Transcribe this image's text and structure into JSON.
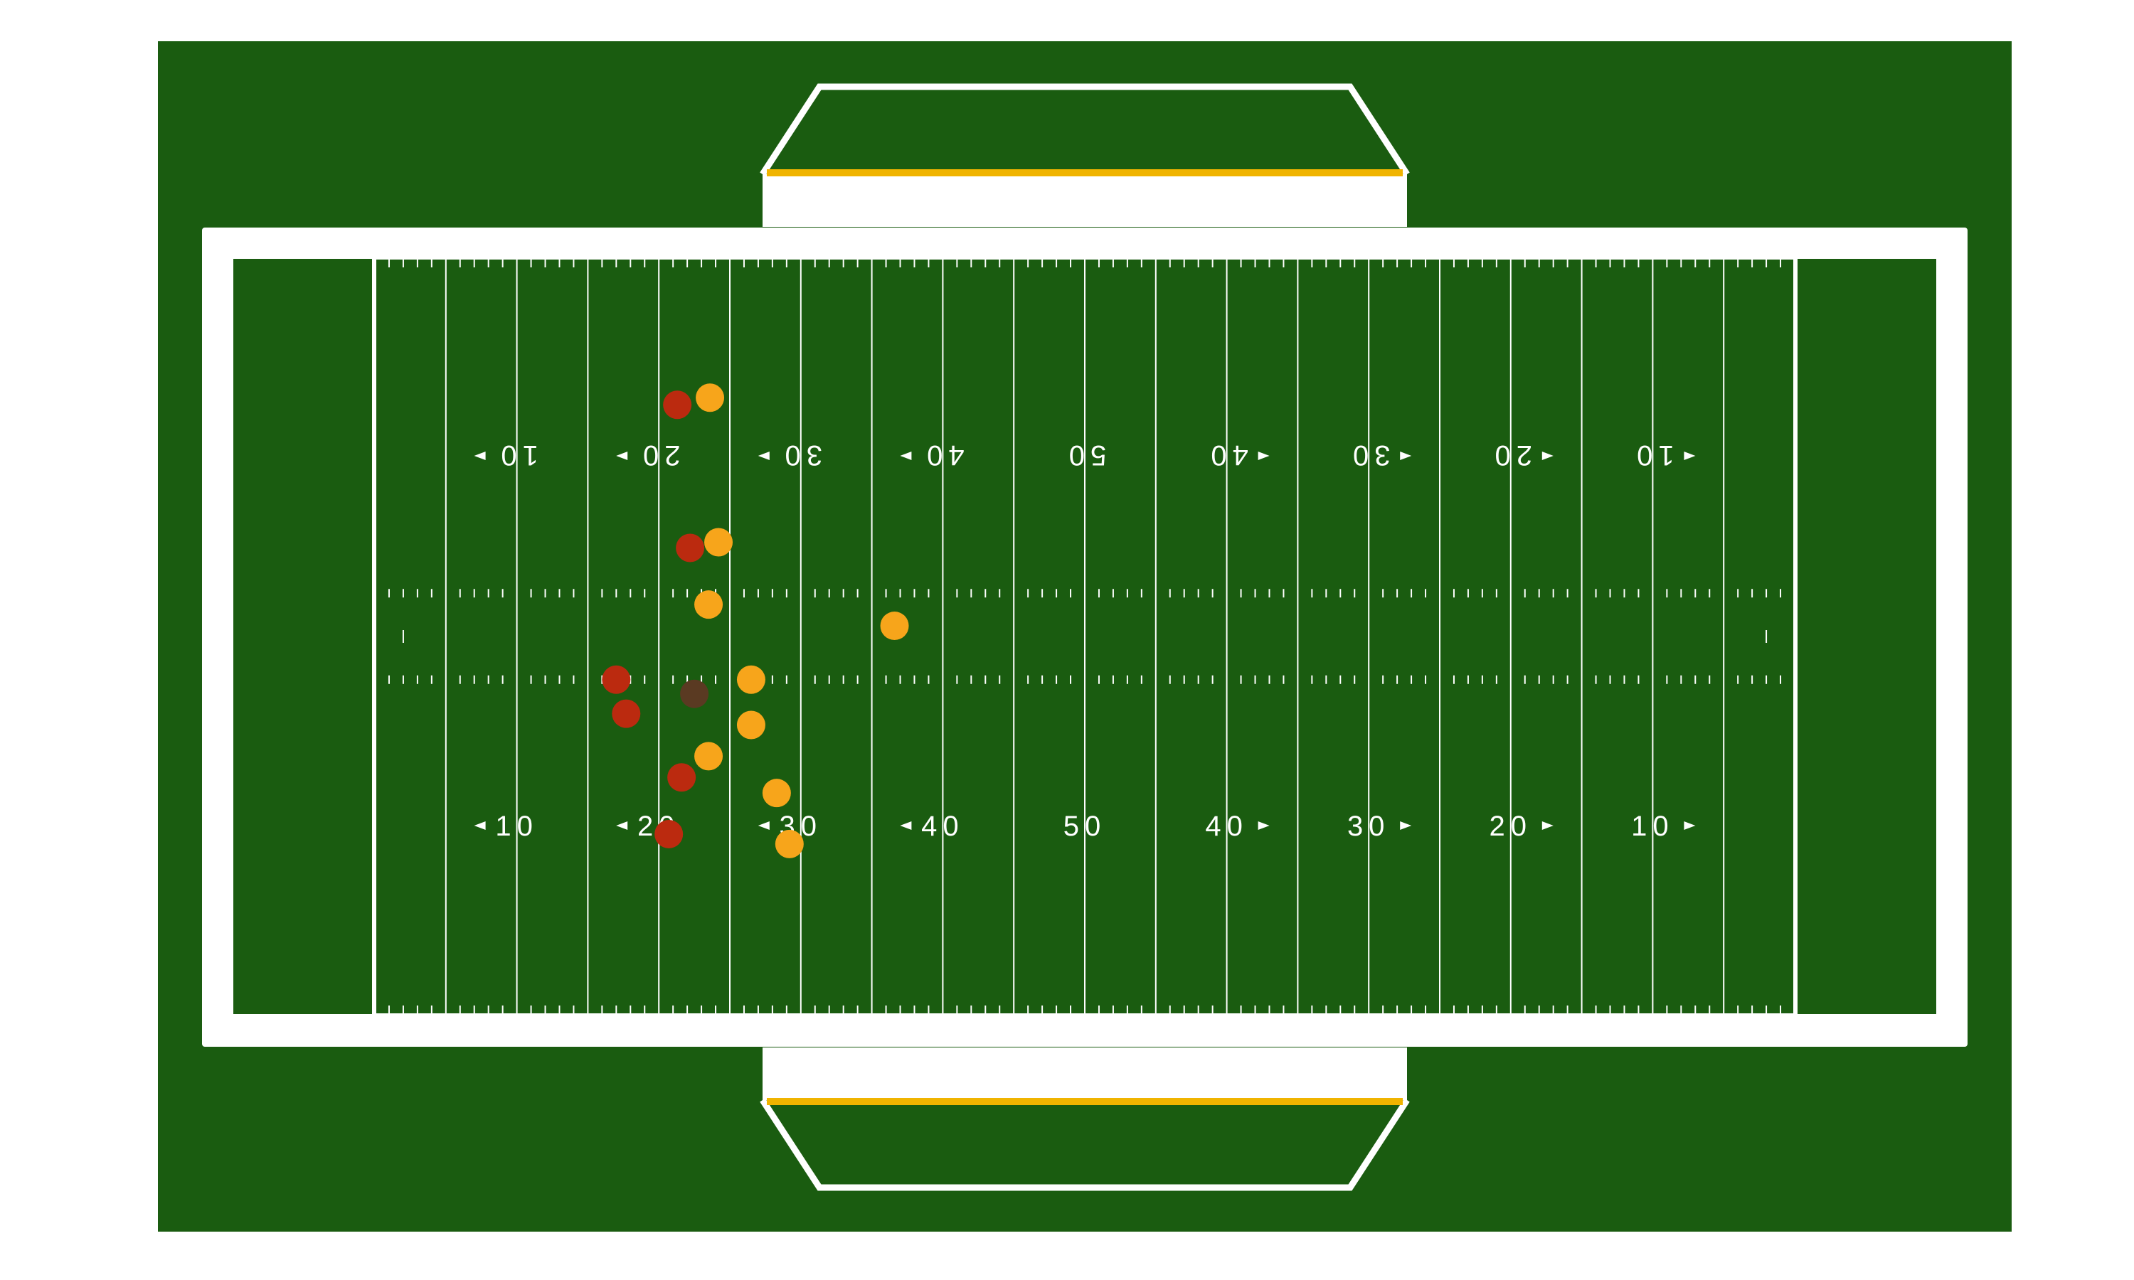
{
  "colors": {
    "background": "#ffffff",
    "grass": "#1a5c10",
    "line": "#ffffff",
    "accent_stripe": "#f0b400",
    "team_red": "#bb2a0f",
    "team_gold": "#f7a51b",
    "ball": "#5a3a22"
  },
  "yard_numbers": {
    "top": [
      "10",
      "20",
      "30",
      "40",
      "50",
      "40",
      "30",
      "20",
      "10"
    ],
    "bottom": [
      "10",
      "20",
      "30",
      "40",
      "50",
      "40",
      "30",
      "20",
      "10"
    ]
  },
  "field": {
    "length_yards": 100,
    "width_yards": 53.3
  },
  "players": [
    {
      "team": "red",
      "yard": 21.3,
      "lateral": 43.0
    },
    {
      "team": "red",
      "yard": 22.2,
      "lateral": 32.9
    },
    {
      "team": "red",
      "yard": 17.0,
      "lateral": 23.6
    },
    {
      "team": "red",
      "yard": 17.7,
      "lateral": 21.2
    },
    {
      "team": "red",
      "yard": 21.6,
      "lateral": 16.7
    },
    {
      "team": "red",
      "yard": 20.7,
      "lateral": 12.7
    },
    {
      "team": "gold",
      "yard": 23.6,
      "lateral": 43.5
    },
    {
      "team": "gold",
      "yard": 24.2,
      "lateral": 33.3
    },
    {
      "team": "gold",
      "yard": 23.5,
      "lateral": 28.9
    },
    {
      "team": "gold",
      "yard": 36.6,
      "lateral": 27.4
    },
    {
      "team": "gold",
      "yard": 26.5,
      "lateral": 23.6
    },
    {
      "team": "gold",
      "yard": 26.5,
      "lateral": 20.4
    },
    {
      "team": "gold",
      "yard": 23.5,
      "lateral": 18.2
    },
    {
      "team": "gold",
      "yard": 28.3,
      "lateral": 15.6
    },
    {
      "team": "gold",
      "yard": 29.2,
      "lateral": 12.0
    }
  ],
  "ball": {
    "yard": 22.5,
    "lateral": 22.6
  }
}
